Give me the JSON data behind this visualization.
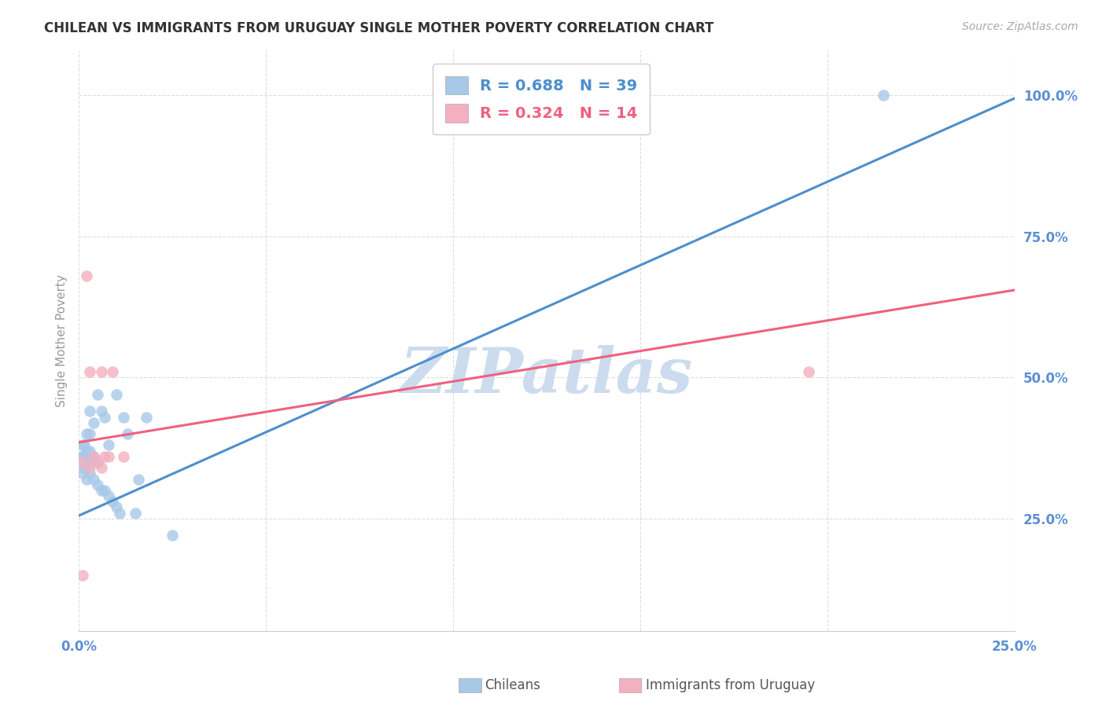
{
  "title": "CHILEAN VS IMMIGRANTS FROM URUGUAY SINGLE MOTHER POVERTY CORRELATION CHART",
  "source": "Source: ZipAtlas.com",
  "ylabel": "Single Mother Poverty",
  "ytick_labels": [
    "25.0%",
    "50.0%",
    "75.0%",
    "100.0%"
  ],
  "ytick_values": [
    0.25,
    0.5,
    0.75,
    1.0
  ],
  "xlim": [
    0.0,
    0.25
  ],
  "ylim": [
    0.05,
    1.08
  ],
  "legend_r1": "R = 0.688",
  "legend_n1": "N = 39",
  "legend_r2": "R = 0.324",
  "legend_n2": "N = 14",
  "blue_color": "#a8c8e8",
  "pink_color": "#f4b0c0",
  "blue_line_color": "#4d8fcc",
  "pink_line_color": "#f06080",
  "watermark": "ZIPatlas",
  "watermark_color": "#ccdcee",
  "title_color": "#333333",
  "axis_label_color": "#5b8fd4",
  "grid_color": "#dddddd",
  "chileans_x": [
    0.0005,
    0.001,
    0.001,
    0.001,
    0.0015,
    0.0015,
    0.002,
    0.002,
    0.002,
    0.002,
    0.003,
    0.003,
    0.003,
    0.003,
    0.003,
    0.004,
    0.004,
    0.004,
    0.005,
    0.005,
    0.005,
    0.006,
    0.006,
    0.007,
    0.007,
    0.008,
    0.008,
    0.009,
    0.01,
    0.01,
    0.011,
    0.012,
    0.013,
    0.015,
    0.016,
    0.018,
    0.025,
    0.115,
    0.215
  ],
  "chileans_y": [
    0.36,
    0.33,
    0.36,
    0.38,
    0.34,
    0.38,
    0.32,
    0.35,
    0.37,
    0.4,
    0.33,
    0.35,
    0.37,
    0.4,
    0.44,
    0.32,
    0.36,
    0.42,
    0.31,
    0.35,
    0.47,
    0.3,
    0.44,
    0.3,
    0.43,
    0.29,
    0.38,
    0.28,
    0.27,
    0.47,
    0.26,
    0.43,
    0.4,
    0.26,
    0.32,
    0.43,
    0.22,
    1.0,
    1.0
  ],
  "uruguay_x": [
    0.001,
    0.001,
    0.002,
    0.003,
    0.003,
    0.004,
    0.005,
    0.006,
    0.006,
    0.007,
    0.008,
    0.009,
    0.012,
    0.195
  ],
  "uruguay_y": [
    0.15,
    0.35,
    0.68,
    0.34,
    0.51,
    0.36,
    0.35,
    0.34,
    0.51,
    0.36,
    0.36,
    0.51,
    0.36,
    0.51
  ],
  "blue_trendline_x": [
    0.0,
    0.25
  ],
  "blue_trendline_y": [
    0.255,
    0.995
  ],
  "pink_trendline_x": [
    0.0,
    0.25
  ],
  "pink_trendline_y": [
    0.385,
    0.655
  ]
}
